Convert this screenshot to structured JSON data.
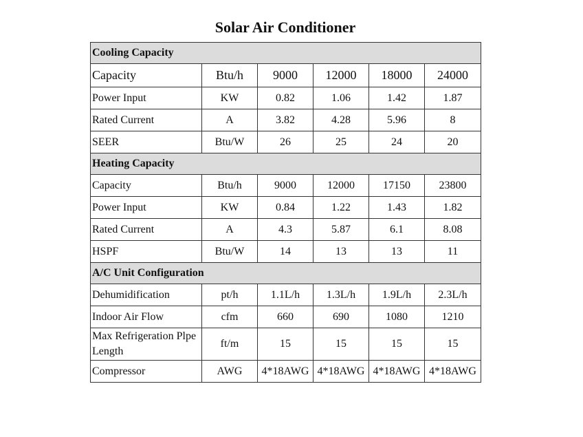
{
  "title": "Solar Air Conditioner",
  "sections": [
    {
      "name": "Cooling Capacity",
      "rows": [
        {
          "label": "Capacity",
          "unit": "Btu/h",
          "values": [
            "9000",
            "12000",
            "18000",
            "24000"
          ]
        },
        {
          "label": "Power Input",
          "unit": "KW",
          "values": [
            "0.82",
            "1.06",
            "1.42",
            "1.87"
          ]
        },
        {
          "label": "Rated Current",
          "unit": "A",
          "values": [
            "3.82",
            "4.28",
            "5.96",
            "8"
          ]
        },
        {
          "label": "SEER",
          "unit": "Btu/W",
          "values": [
            "26",
            "25",
            "24",
            "20"
          ]
        }
      ]
    },
    {
      "name": "Heating Capacity",
      "rows": [
        {
          "label": "Capacity",
          "unit": "Btu/h",
          "values": [
            "9000",
            "12000",
            "17150",
            "23800"
          ]
        },
        {
          "label": "Power Input",
          "unit": "KW",
          "values": [
            "0.84",
            "1.22",
            "1.43",
            "1.82"
          ]
        },
        {
          "label": "Rated Current",
          "unit": "A",
          "values": [
            "4.3",
            "5.87",
            "6.1",
            "8.08"
          ]
        },
        {
          "label": "HSPF",
          "unit": "Btu/W",
          "values": [
            "14",
            "13",
            "13",
            "11"
          ]
        }
      ]
    },
    {
      "name": "A/C Unit Configuration",
      "rows": [
        {
          "label": "Dehumidification",
          "unit": "pt/h",
          "values": [
            "1.1L/h",
            "1.3L/h",
            "1.9L/h",
            "2.3L/h"
          ]
        },
        {
          "label": "Indoor Air Flow",
          "unit": "cfm",
          "values": [
            "660",
            "690",
            "1080",
            "1210"
          ]
        },
        {
          "label": "Max Refrigeration Plpe Length",
          "unit": "ft/m",
          "values": [
            "15",
            "15",
            "15",
            "15"
          ]
        },
        {
          "label": "Compressor",
          "unit": "AWG",
          "values": [
            "4*18AWG",
            "4*18AWG",
            "4*18AWG",
            "4*18AWG"
          ]
        }
      ]
    }
  ]
}
